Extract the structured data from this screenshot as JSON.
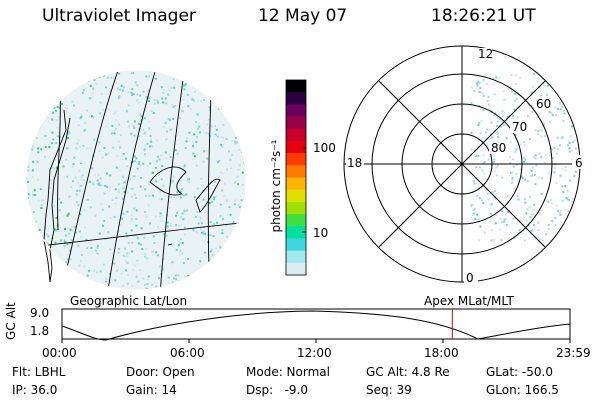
{
  "header": {
    "instrument": "Ultraviolet Imager",
    "date": "12 May 07",
    "time": "18:26:21 UT"
  },
  "colorbar": {
    "label": "photon cm⁻²s⁻¹",
    "ticks": [
      "100",
      "10"
    ],
    "colors": [
      "#000000",
      "#2a0040",
      "#6a0060",
      "#9a0048",
      "#c8002a",
      "#e8000c",
      "#ff3c00",
      "#ff7a00",
      "#ffb400",
      "#e0e000",
      "#a0e000",
      "#40e040",
      "#00e0a0",
      "#40d8e0",
      "#a0e8ee",
      "#dcecf0"
    ]
  },
  "left_panel": {
    "name": "geographic-view"
  },
  "right_panel": {
    "mlt_labels": {
      "top": "12",
      "left": "18",
      "right": "6",
      "bottom": "0"
    },
    "lat_labels": [
      "60",
      "70",
      "80"
    ]
  },
  "timeline": {
    "ylabel": "GC Alt",
    "yticks": [
      "9.0",
      "1.8"
    ],
    "left_caption": "Geographic Lat/Lon",
    "right_caption": "Apex  MLat/MLT",
    "xticks": [
      "00:00",
      "06:00",
      "12:00",
      "18:00",
      "23:59"
    ],
    "marker_time_fraction": 0.7683
  },
  "info": {
    "row1": [
      "Flt: LBHL",
      "Door: Open",
      "Mode: Normal",
      "GC Alt: 4.8 Re",
      "GLat: -50.0"
    ],
    "row2": [
      "IP: 36.0",
      "Gain: 14",
      "Dsp:   -9.0",
      "Seq: 39",
      "GLon: 166.5"
    ]
  }
}
